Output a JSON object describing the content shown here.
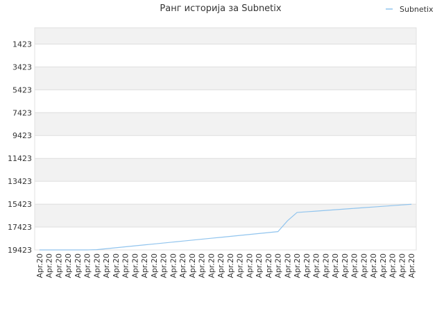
{
  "chart_data": {
    "type": "line",
    "title": "Ранг историја за Subnetix",
    "categories": [
      "Apr.20",
      "Apr.20",
      "Apr.20",
      "Apr.20",
      "Apr.20",
      "Apr.20",
      "Apr.20",
      "Apr.20",
      "Apr.20",
      "Apr.20",
      "Apr.20",
      "Apr.20",
      "Apr.20",
      "Apr.20",
      "Apr.20",
      "Apr.20",
      "Apr.20",
      "Apr.20",
      "Apr.20",
      "Apr.20",
      "Apr.20",
      "Apr.20",
      "Apr.20",
      "Apr.20",
      "Apr.20",
      "Apr.20",
      "Apr.20",
      "Apr.20",
      "Apr.20",
      "Apr.20",
      "Apr.20",
      "Apr.20",
      "Apr.20",
      "Apr.20",
      "Apr.20",
      "Apr.20",
      "Apr.20",
      "Apr.20",
      "Apr.20",
      "Apr.20"
    ],
    "series": [
      {
        "name": "Subnetix",
        "color": "#90c4ee",
        "values": [
          19423,
          19423,
          19423,
          19423,
          19423,
          19423,
          19400,
          19317,
          19234,
          19151,
          19068,
          18985,
          18902,
          18819,
          18736,
          18653,
          18570,
          18487,
          18404,
          18321,
          18238,
          18155,
          18072,
          17989,
          17906,
          17823,
          16880,
          16150,
          16090,
          16030,
          15970,
          15910,
          15850,
          15790,
          15730,
          15670,
          15610,
          15550,
          15490,
          15430
        ]
      }
    ],
    "ylim": [
      19423,
      0
    ],
    "yticks": [
      1423,
      3423,
      5423,
      7423,
      9423,
      11423,
      13423,
      15423,
      17423,
      19423
    ],
    "grid": true,
    "legend": "top-right"
  }
}
